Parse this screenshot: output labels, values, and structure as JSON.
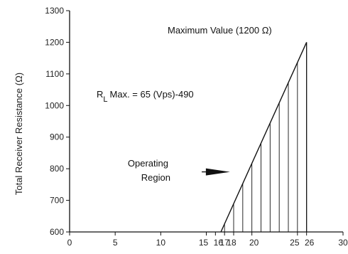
{
  "chart_data": {
    "type": "line",
    "title": "",
    "xlabel": "",
    "ylabel": "Total Receiver Resistance (Ω)",
    "xlim": [
      0,
      30
    ],
    "ylim": [
      600,
      1300
    ],
    "x_ticks": [
      0,
      5,
      10,
      15,
      16,
      17,
      18,
      20,
      25,
      26,
      30
    ],
    "x_tick_labels": [
      "0",
      "5",
      "10",
      "15",
      "16",
      "17",
      "18",
      "20",
      "25",
      "26",
      "30"
    ],
    "y_ticks": [
      600,
      700,
      800,
      900,
      1000,
      1100,
      1200,
      1300
    ],
    "y_tick_labels": [
      "600",
      "700",
      "800",
      "900",
      "1000",
      "1100",
      "1200",
      "1300"
    ],
    "grid": false,
    "series": [
      {
        "x": [
          16.6,
          26
        ],
        "y": [
          600,
          1200
        ]
      }
    ],
    "operating_region": {
      "x_start": 16.6,
      "x_end": 26,
      "y_floor": 600,
      "hatch_x": [
        17,
        18,
        19,
        20,
        21,
        22,
        23,
        24,
        25
      ]
    },
    "annotations": {
      "max_value": "Maximum Value (1200 Ω)",
      "formula_main": "R",
      "formula_sub": "L",
      "formula_rest": "Max. = 65 (Vps)-490",
      "region_line1": "Operating",
      "region_line2": "Region"
    },
    "arrow_target": {
      "x": 17.6,
      "y": 790
    },
    "arrow_tail": {
      "x": 14.5,
      "y": 790
    }
  }
}
